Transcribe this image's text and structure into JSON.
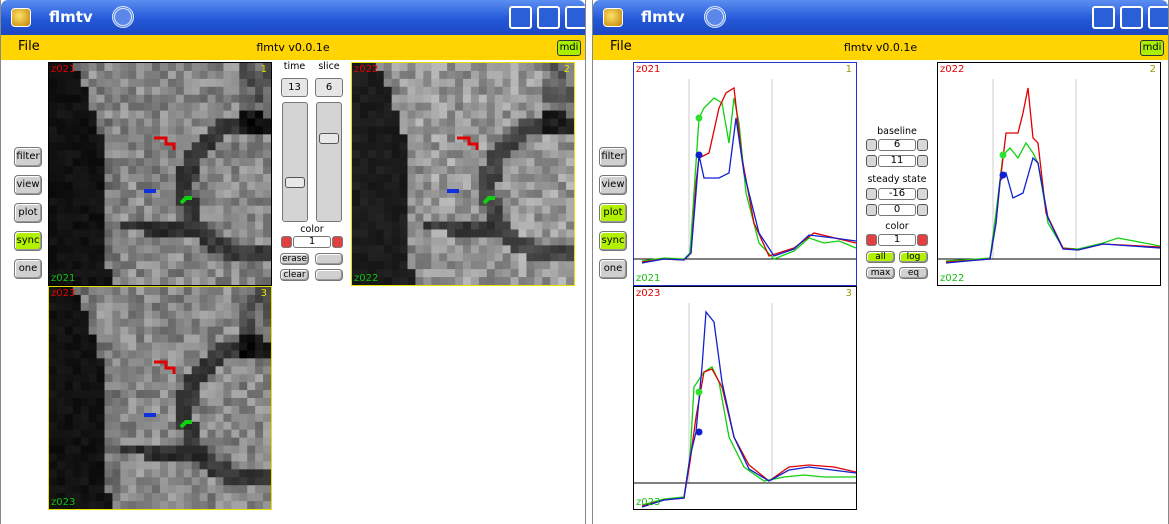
{
  "windows": [
    {
      "title": "flmtv",
      "menu": "File",
      "app_title": "flmtv v0.0.1e",
      "mdi": "mdi",
      "side_buttons": [
        "filter",
        "view",
        "plot",
        "sync",
        "one"
      ],
      "panels": [
        {
          "name": "z021",
          "index": "1"
        },
        {
          "name": "z022",
          "index": "2"
        },
        {
          "name": "z023",
          "index": "3"
        }
      ],
      "controls": {
        "time_label": "time",
        "slice_label": "slice",
        "time": "13",
        "slice": "6",
        "color_label": "color",
        "color": "1",
        "erase": "erase",
        "clear": "clear"
      }
    },
    {
      "title": "flmtv",
      "menu": "File",
      "app_title": "flmtv v0.0.1e",
      "mdi": "mdi",
      "side_buttons": [
        "filter",
        "view",
        "plot",
        "sync",
        "one"
      ],
      "panels": [
        {
          "name": "z021",
          "index": "1"
        },
        {
          "name": "z022",
          "index": "2"
        },
        {
          "name": "z023",
          "index": "3"
        }
      ],
      "controls": {
        "baseline_label": "baseline",
        "baseline_start": "6",
        "baseline_end": "11",
        "steady_label": "steady state",
        "steady_start": "-16",
        "steady_end": "0",
        "color_label": "color",
        "color": "1",
        "all": "all",
        "log": "log",
        "max": "max",
        "eq": "eq"
      }
    }
  ]
}
